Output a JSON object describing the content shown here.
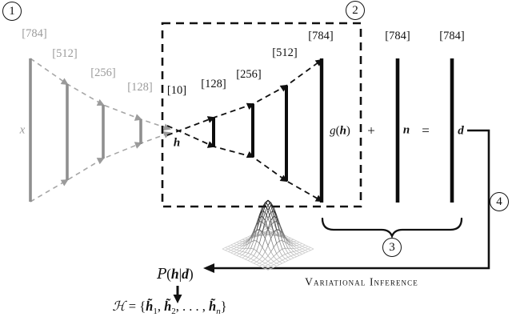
{
  "colors": {
    "encoder_gray": "#9b9b9b",
    "ink": "#111111"
  },
  "badges": {
    "step1": "1",
    "step2": "2",
    "step3": "3",
    "step4": "4"
  },
  "encoder": {
    "input_vector_label": "x",
    "layer_sizes": [
      "[784]",
      "[512]",
      "[256]",
      "[128]"
    ]
  },
  "latent": {
    "size": "[10]",
    "vector_label": "h"
  },
  "decoder": {
    "layer_sizes": [
      "[128]",
      "[256]",
      "[512]",
      "[784]"
    ],
    "output": {
      "g": "g",
      "open": "(",
      "h": "h",
      "close": ")"
    }
  },
  "noise_model": {
    "plus": "+",
    "noise_size": "[784]",
    "noise_label": "n",
    "equals": "=",
    "data_size": "[784]",
    "data_label": "d"
  },
  "inference": {
    "method_label": "Variational Inference",
    "posterior": {
      "p": "P",
      "open": "(",
      "h": "h",
      "bar": "|",
      "d": "d",
      "close": ")"
    },
    "samples": {
      "set": "ℋ",
      "eq": "=",
      "open": "{",
      "h1": "h̃",
      "s1": "1",
      "c1": ",",
      "h2": "h̃",
      "s2": "2",
      "dots": ", . . . ,",
      "hn": "h̃",
      "sn": "n",
      "close": "}"
    }
  }
}
